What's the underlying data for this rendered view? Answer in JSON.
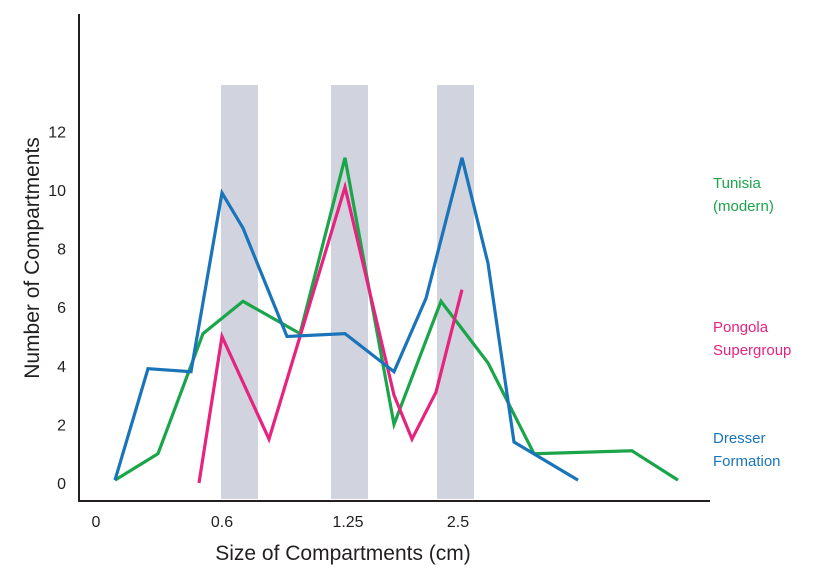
{
  "chart_data": {
    "type": "line",
    "title": "",
    "xlabel": "Size of Compartments (cm)",
    "ylabel": "Number of Compartments",
    "ylim": [
      0,
      13
    ],
    "x_tick_labels": [
      {
        "label": "0",
        "x": 0
      },
      {
        "label": "0.6",
        "x": 0.6
      },
      {
        "label": "1.25",
        "x": 1.25
      },
      {
        "label": "2.5",
        "x": 2.5
      }
    ],
    "y_ticks": [
      0,
      2,
      4,
      6,
      8,
      10,
      12
    ],
    "highlight_bands": [
      {
        "x0": 0.6,
        "x1": 0.8
      },
      {
        "x0": 1.15,
        "x1": 1.35
      },
      {
        "x0": 2.1,
        "x1": 2.3
      }
    ],
    "grid": false,
    "legend_position": "right",
    "series": [
      {
        "name": "Tunisia (modern)",
        "label_lines": [
          "Tunisia",
          "(modern)"
        ],
        "color": "#1aa54a",
        "points": [
          [
            0.1,
            0.1
          ],
          [
            0.35,
            1.0
          ],
          [
            0.55,
            5.1
          ],
          [
            0.75,
            6.2
          ],
          [
            1.0,
            5.1
          ],
          [
            1.2,
            11.1
          ],
          [
            1.45,
            2.0
          ],
          [
            1.75,
            6.2
          ],
          [
            2.0,
            4.1
          ],
          [
            2.3,
            1.0
          ],
          [
            2.85,
            1.1
          ],
          [
            3.1,
            0.1
          ]
        ]
      },
      {
        "name": "Pongola Supergroup",
        "label_lines": [
          "Pongola",
          "Supergroup"
        ],
        "color": "#e6237e",
        "points": [
          [
            0.5,
            0.0
          ],
          [
            0.6,
            5.0
          ],
          [
            0.8,
            1.5
          ],
          [
            1.0,
            5.0
          ],
          [
            1.2,
            10.1
          ],
          [
            1.45,
            3.0
          ],
          [
            1.55,
            1.5
          ],
          [
            1.7,
            3.1
          ],
          [
            1.8,
            6.6
          ]
        ]
      },
      {
        "name": "Dresser Formation",
        "label_lines": [
          "Dresser",
          "Formation"
        ],
        "color": "#1a74b9",
        "points": [
          [
            0.1,
            0.1
          ],
          [
            0.25,
            3.9
          ],
          [
            0.45,
            3.8
          ],
          [
            0.6,
            9.9
          ],
          [
            0.75,
            8.7
          ],
          [
            0.9,
            5.0
          ],
          [
            1.2,
            5.1
          ],
          [
            1.45,
            3.8
          ],
          [
            1.6,
            6.3
          ],
          [
            1.8,
            11.1
          ],
          [
            2.0,
            7.5
          ],
          [
            2.2,
            1.4
          ],
          [
            2.6,
            0.1
          ]
        ]
      }
    ]
  }
}
